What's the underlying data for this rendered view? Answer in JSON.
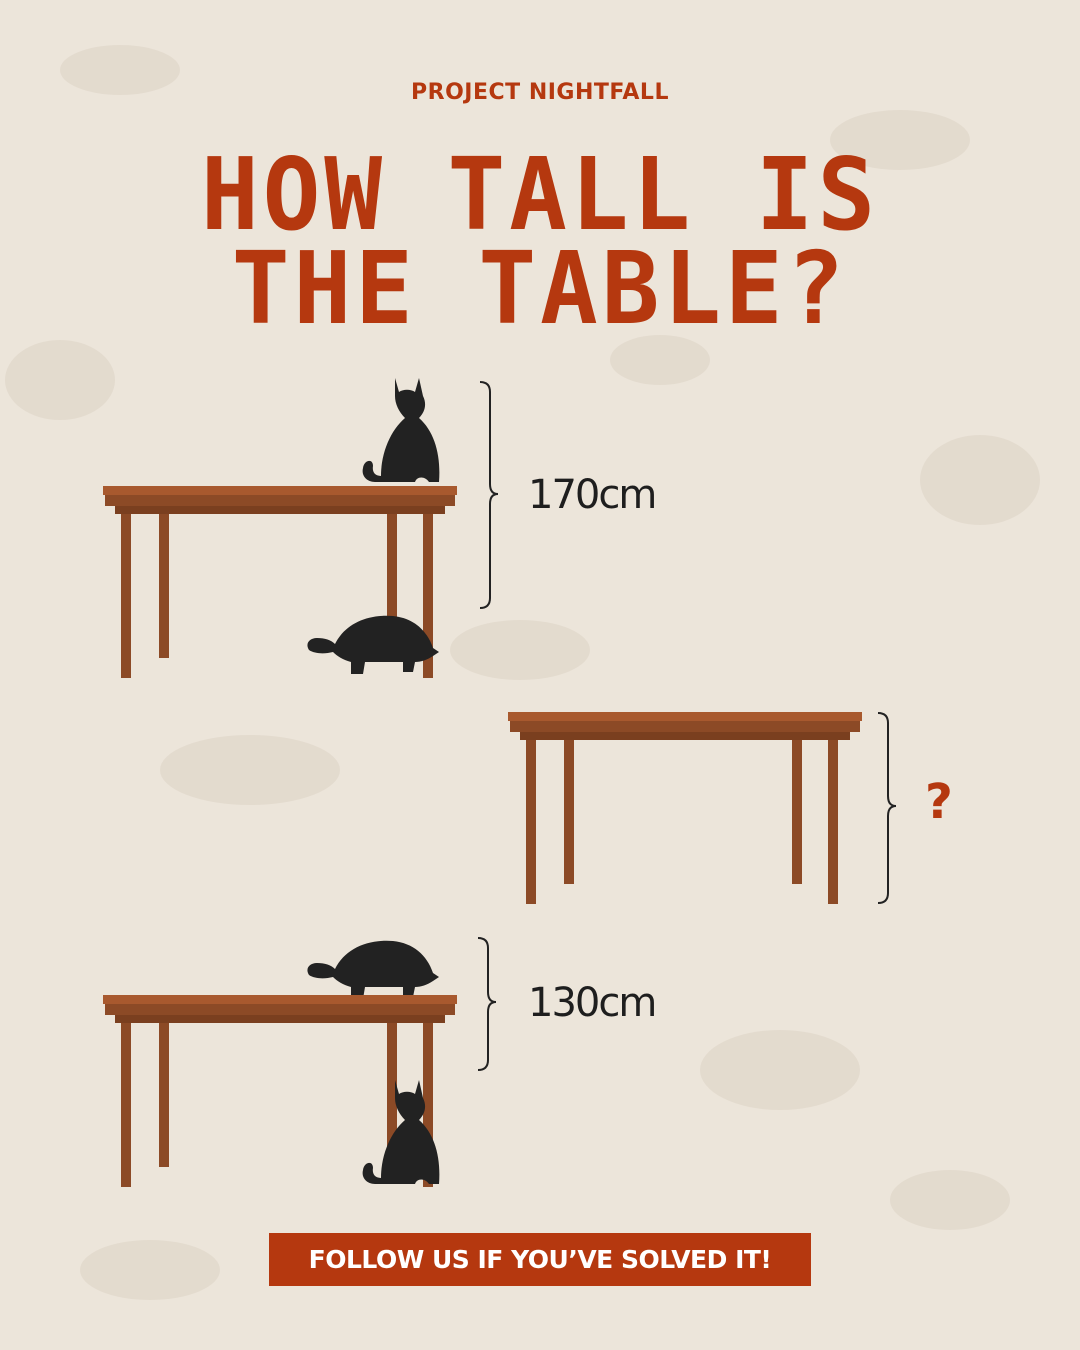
{
  "brand": "PROJECT NIGHTFALL",
  "headline": {
    "line1": "HOW TALL IS",
    "line2": "THE TABLE?"
  },
  "measurements": {
    "top": "170cm",
    "middle": "?",
    "bottom": "130cm"
  },
  "cta": "FOLLOW US IF YOU’VE SOLVED IT!",
  "colors": {
    "background": "#ece5da",
    "accent": "#b5380f",
    "table_top": "#8c4a26",
    "table_legs": "#8c4a26",
    "silhouette": "#222222"
  }
}
